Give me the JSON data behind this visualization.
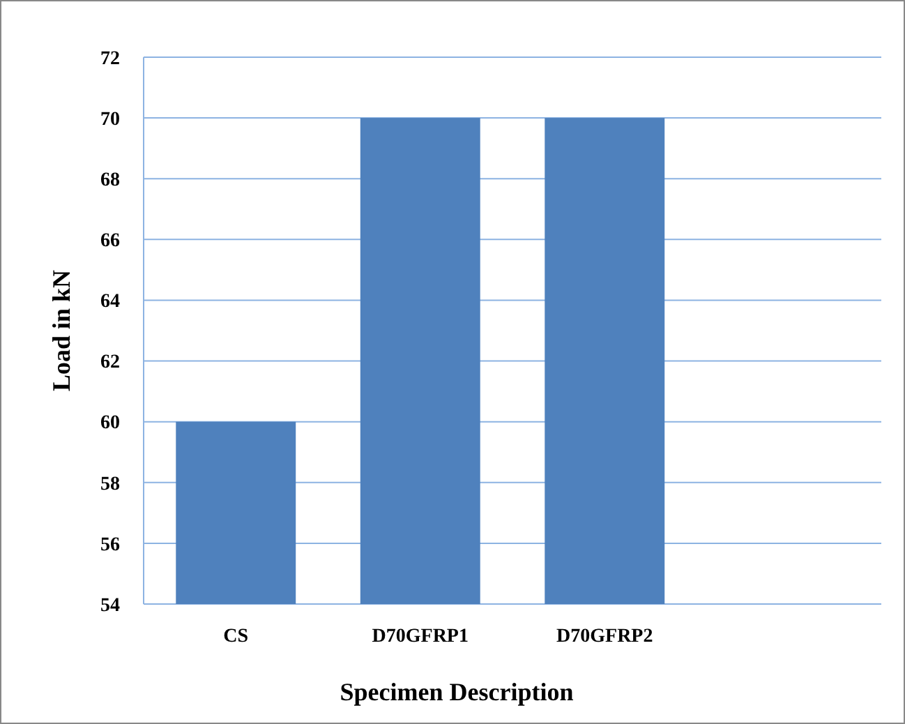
{
  "chart_data": {
    "type": "bar",
    "xlabel": "Specimen Description",
    "ylabel": "Load in kN",
    "categories": [
      "CS",
      "D70GFRP1",
      "D70GFRP2",
      null
    ],
    "values": [
      60,
      70,
      70,
      null
    ],
    "color": "#4f81bd",
    "ylim": [
      54,
      72
    ],
    "yticks": [
      54,
      56,
      58,
      60,
      62,
      64,
      66,
      68,
      70,
      72
    ],
    "grid": "y"
  }
}
